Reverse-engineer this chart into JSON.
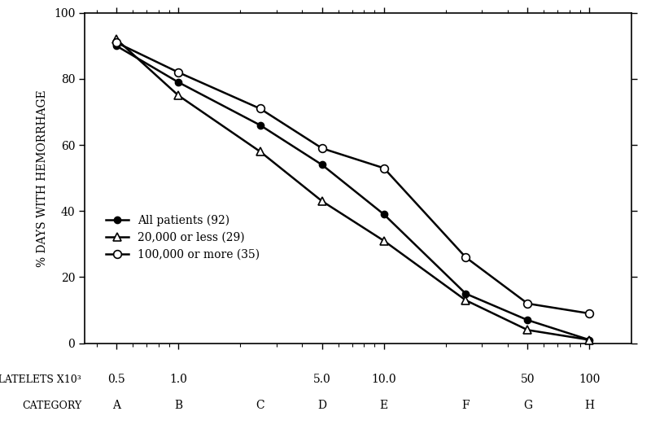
{
  "x_log_values": [
    0.5,
    1.0,
    2.5,
    5.0,
    10.0,
    25.0,
    50.0,
    100.0
  ],
  "categories": [
    "A",
    "B",
    "C",
    "D",
    "E",
    "F",
    "G",
    "H"
  ],
  "platelet_tick_values": [
    0.5,
    1.0,
    5.0,
    10.0,
    50.0,
    100.0
  ],
  "platelet_tick_labels": [
    "0.5",
    "1.0",
    "5.0",
    "10.0",
    "50",
    "100"
  ],
  "all_patients": [
    90,
    79,
    66,
    54,
    39,
    15,
    7,
    1
  ],
  "less_20000": [
    92,
    75,
    58,
    43,
    31,
    13,
    4,
    1
  ],
  "more_100000": [
    91,
    82,
    71,
    59,
    53,
    26,
    12,
    9
  ],
  "ylabel": "% DAYS WITH HEMORRHAGE",
  "legend_all": "All patients (92)",
  "legend_less": "20,000 or less (29)",
  "legend_more": "100,000 or more (35)",
  "ylim": [
    0,
    100
  ],
  "xlim_log": [
    0.35,
    160
  ],
  "background": "#ffffff",
  "line_color": "#000000",
  "label_fontsize": 10,
  "tick_fontsize": 10,
  "legend_fontsize": 10
}
